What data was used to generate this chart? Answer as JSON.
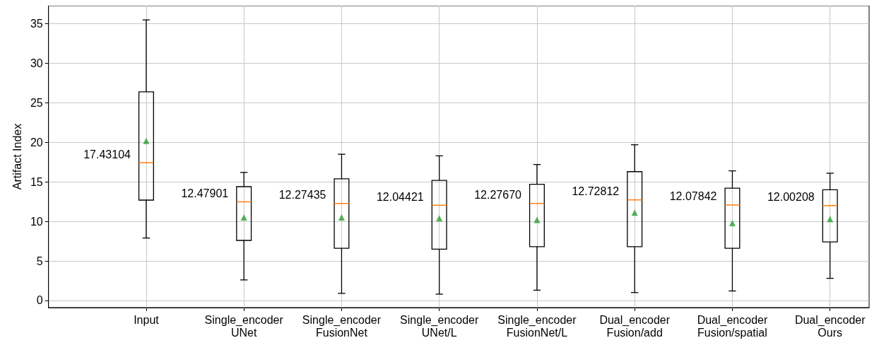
{
  "chart_data": {
    "type": "box",
    "ylabel": "Artifact Index",
    "categories": [
      "Input",
      "Single_encoder\nUNet",
      "Single_encoder\nFusionNet",
      "Single_encoder\nUNet/L",
      "Single_encoder\nFusionNet/L",
      "Dual_encoder\nFusion/add",
      "Dual_encoder\nFusion/spatial",
      "Dual_encoder\nOurs"
    ],
    "boxes": [
      {
        "low": 7.9,
        "q1": 12.7,
        "median": 17.43104,
        "q3": 26.4,
        "high": 35.5,
        "mean": 20.2
      },
      {
        "low": 2.6,
        "q1": 7.6,
        "median": 12.47901,
        "q3": 14.4,
        "high": 16.2,
        "mean": 10.5
      },
      {
        "low": 0.9,
        "q1": 6.6,
        "median": 12.27435,
        "q3": 15.4,
        "high": 18.5,
        "mean": 10.5
      },
      {
        "low": 0.8,
        "q1": 6.5,
        "median": 12.04421,
        "q3": 15.2,
        "high": 18.3,
        "mean": 10.4
      },
      {
        "low": 1.3,
        "q1": 6.8,
        "median": 12.2767,
        "q3": 14.7,
        "high": 17.2,
        "mean": 10.2
      },
      {
        "low": 1.0,
        "q1": 6.8,
        "median": 12.72812,
        "q3": 16.3,
        "high": 19.7,
        "mean": 11.1
      },
      {
        "low": 1.2,
        "q1": 6.6,
        "median": 12.07842,
        "q3": 14.2,
        "high": 16.4,
        "mean": 9.8
      },
      {
        "low": 2.8,
        "q1": 7.4,
        "median": 12.00208,
        "q3": 14.0,
        "high": 16.1,
        "mean": 10.3
      }
    ],
    "annotations": [
      {
        "text": "17.43104",
        "x": "Input",
        "y": 17.43104
      },
      {
        "text": "12.47901",
        "x": "Single_encoder\nUNet",
        "y": 12.47901
      },
      {
        "text": "12.27435",
        "x": "Single_encoder\nFusionNet",
        "y": 12.27435
      },
      {
        "text": "12.04421",
        "x": "Single_encoder\nUNet/L",
        "y": 12.04421
      },
      {
        "text": "12.27670",
        "x": "Single_encoder\nFusionNet/L",
        "y": 12.2767
      },
      {
        "text": "12.72812",
        "x": "Dual_encoder\nFusion/add",
        "y": 12.72812
      },
      {
        "text": "12.07842",
        "x": "Dual_encoder\nFusion/spatial",
        "y": 12.07842
      },
      {
        "text": "12.00208",
        "x": "Dual_encoder\nOurs",
        "y": 12.00208
      }
    ],
    "ylim": [
      -0.9,
      37.3
    ],
    "yticks": [
      0,
      5,
      10,
      15,
      20,
      25,
      30,
      35
    ],
    "grid": true
  }
}
